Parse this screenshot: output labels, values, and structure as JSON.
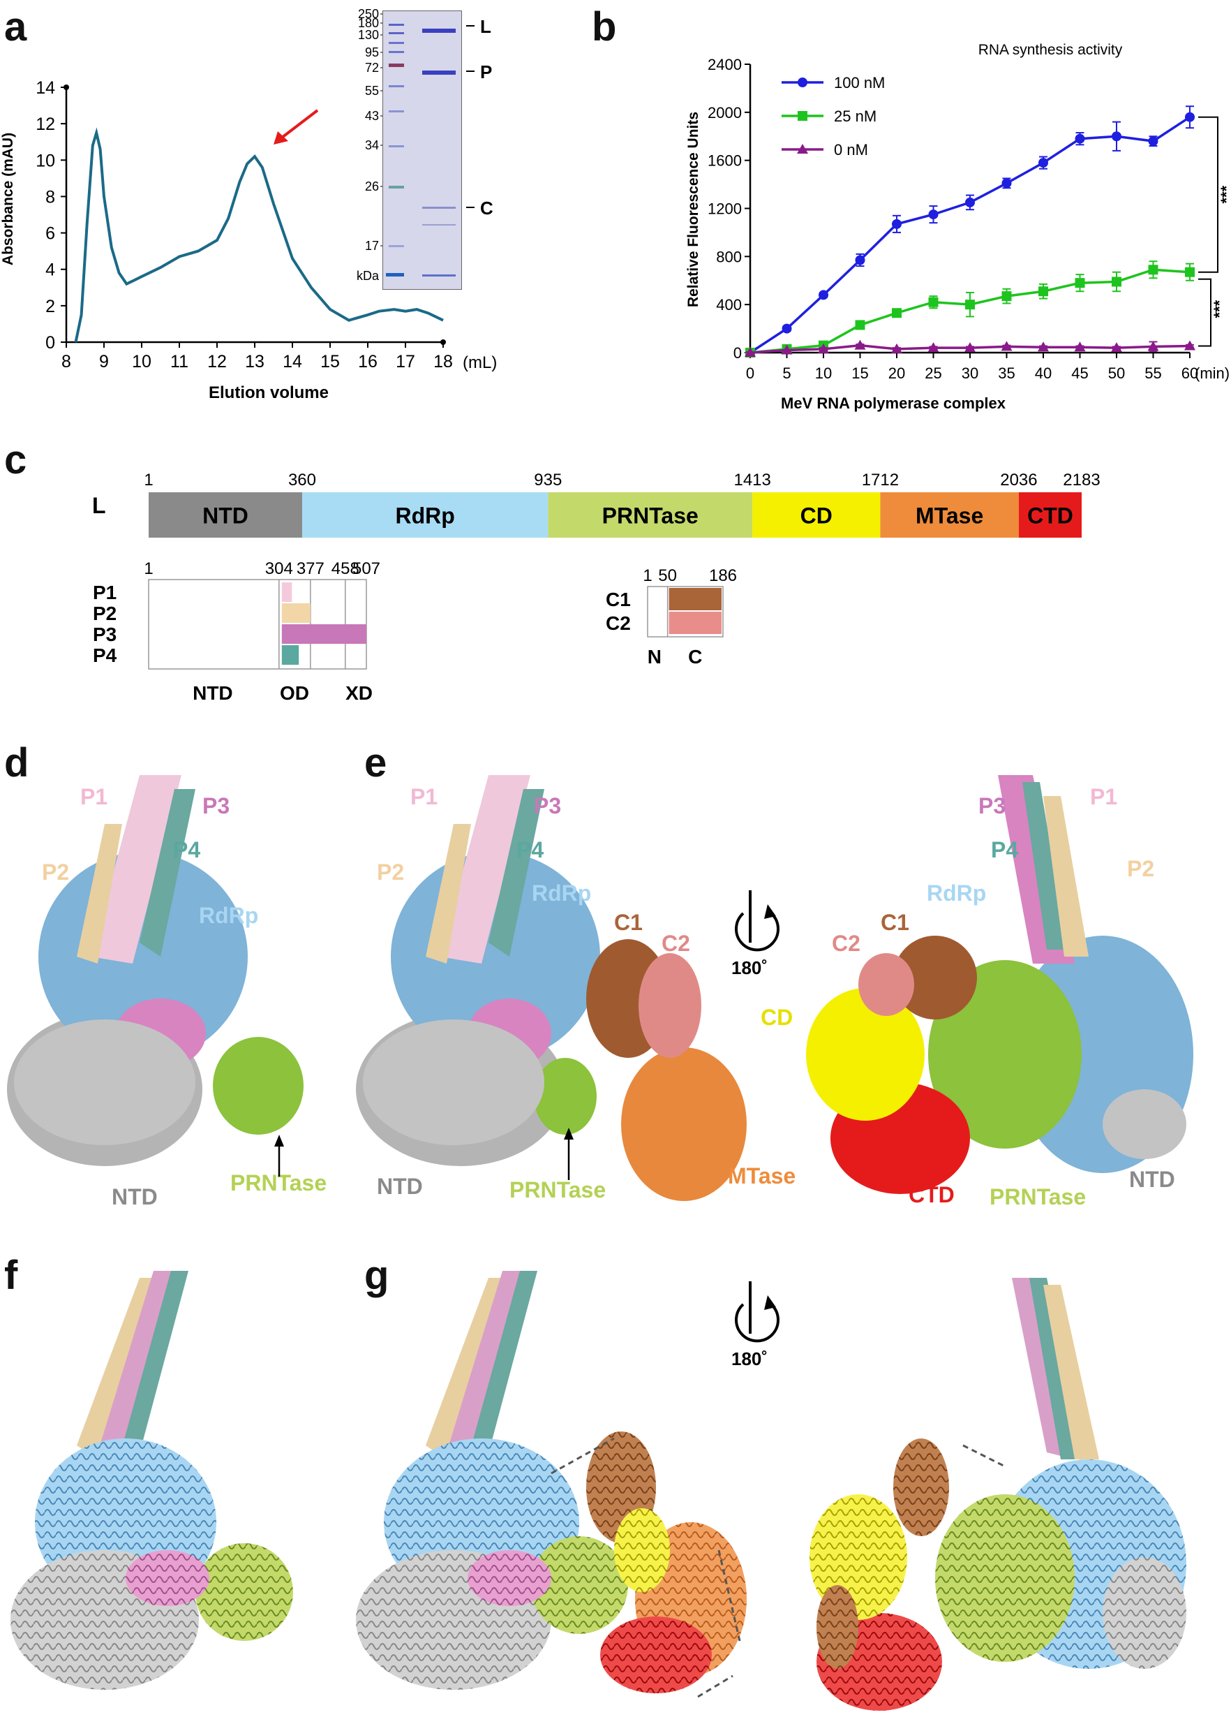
{
  "panels": {
    "a": "a",
    "b": "b",
    "c": "c",
    "d": "d",
    "e": "e",
    "f": "f",
    "g": "g"
  },
  "colors": {
    "NTD": "#8a8a8a",
    "RdRp": "#a8dcf5",
    "PRNTase": "#c3d96a",
    "CD": "#f5f000",
    "MTase": "#ee8c3c",
    "CTD": "#e51b1b",
    "P1": "#f5c9dc",
    "P2": "#f2d6a8",
    "P3": "#c878b8",
    "P4": "#5aa8a0",
    "C1": "#a96438",
    "C2": "#e98d8a",
    "trace_a": "#1b6a88",
    "series_100": "#1f1fe0",
    "series_25": "#1ec41e",
    "series_0": "#8a1a8a"
  },
  "chart_data": [
    {
      "type": "line",
      "panel": "a",
      "xlabel": "Elution volume",
      "ylabel": "Absorbance (mAU)",
      "x_unit": "(mL)",
      "xlim": [
        8,
        18
      ],
      "ylim": [
        0,
        14
      ],
      "xticks": [
        "8",
        "9",
        "10",
        "11",
        "12",
        "13",
        "14",
        "15",
        "16",
        "17",
        "18"
      ],
      "yticks": [
        "0",
        "2",
        "4",
        "6",
        "8",
        "10",
        "12",
        "14"
      ],
      "x": [
        8.25,
        8.4,
        8.55,
        8.7,
        8.8,
        8.9,
        9.0,
        9.2,
        9.4,
        9.6,
        9.8,
        10.0,
        10.5,
        11.0,
        11.5,
        12.0,
        12.3,
        12.6,
        12.8,
        13.0,
        13.2,
        13.5,
        13.8,
        14.0,
        14.5,
        15.0,
        15.5,
        16.0,
        16.3,
        16.7,
        17.0,
        17.3,
        17.6,
        18.0
      ],
      "y": [
        0.0,
        1.5,
        6.5,
        10.8,
        11.5,
        10.6,
        8.0,
        5.2,
        3.8,
        3.2,
        3.4,
        3.6,
        4.1,
        4.7,
        5.0,
        5.6,
        6.8,
        8.8,
        9.8,
        10.2,
        9.6,
        7.6,
        5.8,
        4.6,
        3.0,
        1.8,
        1.2,
        1.5,
        1.7,
        1.8,
        1.7,
        1.8,
        1.6,
        1.2
      ],
      "annotation": "red arrow at peak ~13 mL",
      "gel": {
        "markers": [
          "250",
          "180",
          "130",
          "95",
          "72",
          "55",
          "43",
          "34",
          "26",
          "17",
          "kDa"
        ],
        "bands": [
          "L",
          "P",
          "C"
        ]
      }
    },
    {
      "type": "line",
      "panel": "b",
      "title": "RNA synthesis activity",
      "xlabel": "MeV RNA polymerase complex",
      "ylabel": "Relative Fluorescence Units",
      "x_unit": "(min)",
      "xlim": [
        0,
        60
      ],
      "ylim": [
        0,
        2400
      ],
      "xticks": [
        "0",
        "5",
        "10",
        "15",
        "20",
        "25",
        "30",
        "35",
        "40",
        "45",
        "50",
        "55",
        "60"
      ],
      "yticks": [
        "0",
        "400",
        "800",
        "1200",
        "1600",
        "2000",
        "2400"
      ],
      "x": [
        0,
        5,
        10,
        15,
        20,
        25,
        30,
        35,
        40,
        45,
        50,
        55,
        60
      ],
      "series": [
        {
          "name": "100 nM",
          "marker": "circle",
          "values": [
            0,
            200,
            480,
            770,
            1070,
            1150,
            1250,
            1410,
            1580,
            1780,
            1800,
            1760,
            1960
          ],
          "err": [
            10,
            20,
            20,
            50,
            70,
            70,
            60,
            40,
            50,
            50,
            120,
            40,
            90
          ]
        },
        {
          "name": "25 nM",
          "marker": "square",
          "values": [
            0,
            30,
            60,
            230,
            330,
            420,
            400,
            470,
            510,
            580,
            590,
            690,
            670
          ],
          "err": [
            5,
            10,
            15,
            30,
            30,
            50,
            100,
            60,
            60,
            70,
            80,
            70,
            70
          ]
        },
        {
          "name": "0 nM",
          "marker": "triangle",
          "values": [
            0,
            20,
            30,
            60,
            30,
            40,
            40,
            50,
            45,
            45,
            40,
            50,
            55
          ],
          "err": [
            5,
            5,
            10,
            10,
            10,
            10,
            10,
            10,
            10,
            10,
            10,
            40,
            10
          ]
        }
      ],
      "significance": [
        "***",
        "***"
      ],
      "legend": "top-left"
    }
  ],
  "panel_c": {
    "L_label": "L",
    "domains": [
      {
        "name": "NTD",
        "start": 1,
        "end": 360
      },
      {
        "name": "RdRp",
        "start": 360,
        "end": 935
      },
      {
        "name": "PRNTase",
        "start": 935,
        "end": 1413
      },
      {
        "name": "CD",
        "start": 1413,
        "end": 1712
      },
      {
        "name": "MTase",
        "start": 1712,
        "end": 2036
      },
      {
        "name": "CTD",
        "start": 2036,
        "end": 2183
      }
    ],
    "L_ticks": [
      "1",
      "360",
      "935",
      "1413",
      "1712",
      "2036",
      "2183"
    ],
    "P_ticks": [
      "1",
      "304",
      "377",
      "458",
      "507"
    ],
    "P_rows": [
      "P1",
      "P2",
      "P3",
      "P4"
    ],
    "P_domains": [
      "NTD",
      "OD",
      "XD"
    ],
    "C_ticks": [
      "1",
      "50",
      "186"
    ],
    "C_rows": [
      "C1",
      "C2"
    ],
    "C_domains": [
      "N",
      "C"
    ]
  },
  "panel_d_labels": [
    "P1",
    "P3",
    "P2",
    "P4",
    "RdRp",
    "NTD",
    "PRNTase"
  ],
  "panel_e_labels_left": [
    "P1",
    "P3",
    "P2",
    "P4",
    "RdRp",
    "C1",
    "C2",
    "NTD",
    "PRNTase",
    "MTase"
  ],
  "panel_e_labels_right": [
    "P3",
    "P1",
    "P4",
    "P2",
    "RdRp",
    "C1",
    "C2",
    "CD",
    "CTD",
    "PRNTase",
    "NTD"
  ],
  "rotation_label": "180˚"
}
